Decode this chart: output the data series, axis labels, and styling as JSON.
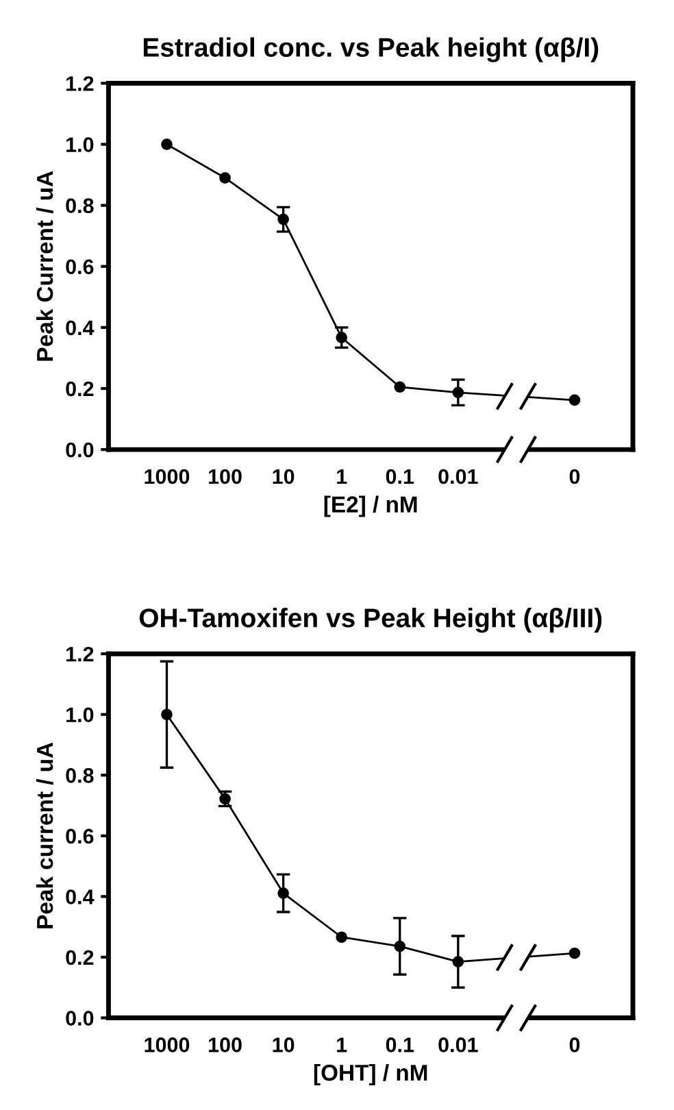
{
  "chart_data": [
    {
      "type": "line",
      "title": "Estradiol conc. vs Peak height (αβ/I)",
      "xlabel": "[E2] / nM",
      "ylabel": "Peak Current / uA",
      "categories": [
        "1000",
        "100",
        "10",
        "1",
        "0.1",
        "0.01",
        null,
        "0"
      ],
      "series": [
        {
          "color": "#000000",
          "values": [
            1.0,
            0.89,
            0.754,
            0.367,
            0.205,
            0.187,
            null,
            0.162
          ],
          "errors": [
            null,
            null,
            0.04,
            0.033,
            null,
            0.042,
            null,
            null
          ]
        }
      ],
      "ylim": [
        0,
        1.2
      ],
      "yticks": [
        {
          "value": 0,
          "label": "0.0"
        },
        {
          "value": 0.2,
          "label": "0.2"
        },
        {
          "value": 0.4,
          "label": "0.4"
        },
        {
          "value": 0.6,
          "label": "0.6"
        },
        {
          "value": 0.8,
          "label": "0.8"
        },
        {
          "value": 1,
          "label": "1.0"
        },
        {
          "value": 1.2,
          "label": "1.2"
        }
      ],
      "grid": false,
      "legend": false,
      "marker": "circle",
      "line_style": "solid"
    },
    {
      "type": "line",
      "title": "OH-Tamoxifen vs Peak Height (αβ/III)",
      "xlabel": "[OHT] / nM",
      "ylabel": "Peak current / uA",
      "categories": [
        "1000",
        "100",
        "10",
        "1",
        "0.1",
        "0.01",
        null,
        "0"
      ],
      "series": [
        {
          "color": "#000000",
          "values": [
            1.0,
            0.722,
            0.411,
            0.266,
            0.236,
            0.185,
            null,
            0.213
          ],
          "errors": [
            0.175,
            0.024,
            0.062,
            null,
            0.093,
            0.085,
            null,
            null
          ]
        }
      ],
      "ylim": [
        0,
        1.2
      ],
      "yticks": [
        {
          "value": 0,
          "label": "0.0"
        },
        {
          "value": 0.2,
          "label": "0.2"
        },
        {
          "value": 0.4,
          "label": "0.4"
        },
        {
          "value": 0.6,
          "label": "0.6"
        },
        {
          "value": 0.8,
          "label": "0.8"
        },
        {
          "value": 1,
          "label": "1.0"
        },
        {
          "value": 1.2,
          "label": "1.2"
        }
      ],
      "grid": false,
      "legend": false,
      "marker": "circle",
      "line_style": "solid"
    }
  ]
}
